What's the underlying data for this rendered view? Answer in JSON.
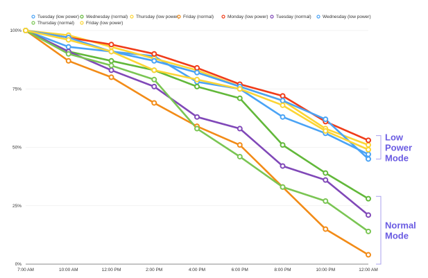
{
  "chart_data": {
    "type": "line",
    "x": [
      "7:00 AM",
      "10:00 AM",
      "12:00 PM",
      "2:00 PM",
      "4:00 PM",
      "6:00 PM",
      "8:00 PM",
      "10:00 PM",
      "12:00 AM"
    ],
    "yticks": [
      "0%",
      "25%",
      "50%",
      "75%",
      "100%"
    ],
    "ylim": [
      0,
      100
    ],
    "grid": true,
    "legend": "top",
    "series": [
      {
        "name": "Tuesday (low power)",
        "color": "#4aa3f5",
        "values": [
          100,
          93,
          91,
          89,
          78,
          75,
          63,
          56,
          47
        ]
      },
      {
        "name": "Wednesday (normal)",
        "color": "#62b83a",
        "values": [
          100,
          91,
          87,
          83,
          76,
          71,
          51,
          39,
          28
        ]
      },
      {
        "name": "Thursday (low power)",
        "color": "#fcd535",
        "values": [
          100,
          98,
          93,
          88,
          83,
          76,
          70,
          58,
          51
        ]
      },
      {
        "name": "Friday (normal)",
        "color": "#f28b17",
        "values": [
          100,
          87,
          80,
          69,
          59,
          51,
          33,
          15,
          4
        ]
      },
      {
        "name": "Monday (low power)",
        "color": "#f03c19",
        "values": [
          100,
          97,
          94,
          90,
          84,
          77,
          72,
          61,
          53
        ]
      },
      {
        "name": "Tuesday (normal)",
        "color": "#8048b8",
        "values": [
          100,
          91,
          83,
          76,
          63,
          58,
          42,
          36,
          21
        ]
      },
      {
        "name": "Wednesday (low power)",
        "color": "#4aa3f5",
        "values": [
          100,
          97,
          91,
          87,
          82,
          76,
          70,
          62,
          45
        ]
      },
      {
        "name": "Thursday (normal)",
        "color": "#7ac553",
        "values": [
          100,
          90,
          85,
          79,
          58,
          46,
          33,
          27,
          14
        ]
      },
      {
        "name": "Friday (low power)",
        "color": "#fcd535",
        "values": [
          100,
          96,
          91,
          83,
          79,
          75,
          68,
          57,
          49
        ]
      }
    ],
    "annotations": [
      {
        "lines": [
          "Low",
          "Power",
          "Mode"
        ],
        "range": [
          45,
          55
        ]
      },
      {
        "lines": [
          "Normal",
          "Mode"
        ],
        "range": [
          0,
          29
        ]
      }
    ],
    "annotation_color": "#6a5be2"
  }
}
